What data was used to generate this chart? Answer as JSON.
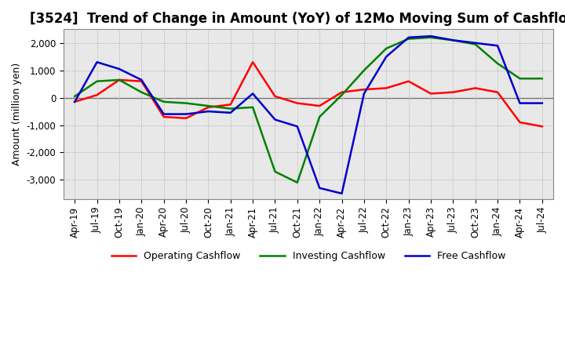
{
  "title": "[3524]  Trend of Change in Amount (YoY) of 12Mo Moving Sum of Cashflows",
  "ylabel": "Amount (million yen)",
  "x_labels": [
    "Apr-19",
    "Jul-19",
    "Oct-19",
    "Jan-20",
    "Apr-20",
    "Jul-20",
    "Oct-20",
    "Jan-21",
    "Apr-21",
    "Jul-21",
    "Oct-21",
    "Jan-22",
    "Apr-22",
    "Jul-22",
    "Oct-22",
    "Jan-23",
    "Apr-23",
    "Jul-23",
    "Oct-23",
    "Jan-24",
    "Apr-24",
    "Jul-24"
  ],
  "operating_cashflow": [
    -150,
    100,
    650,
    600,
    -700,
    -750,
    -350,
    -250,
    1300,
    50,
    -200,
    -300,
    200,
    300,
    350,
    600,
    150,
    200,
    350,
    200,
    -900,
    -1050
  ],
  "investing_cashflow": [
    50,
    600,
    650,
    200,
    -150,
    -200,
    -300,
    -400,
    -350,
    -2700,
    -3100,
    -700,
    100,
    1000,
    1800,
    2150,
    2200,
    2100,
    1950,
    1250,
    700,
    700
  ],
  "free_cashflow": [
    -150,
    1300,
    1050,
    650,
    -600,
    -600,
    -500,
    -550,
    150,
    -800,
    -1050,
    -3300,
    -3500,
    150,
    1500,
    2200,
    2250,
    2100,
    2000,
    1900,
    -200,
    -200
  ],
  "ylim": [
    -3700,
    2500
  ],
  "yticks": [
    -3000,
    -2000,
    -1000,
    0,
    1000,
    2000
  ],
  "legend_labels": [
    "Operating Cashflow",
    "Investing Cashflow",
    "Free Cashflow"
  ],
  "line_colors": [
    "#ff0000",
    "#008000",
    "#0000cc"
  ],
  "bg_color": "#e8e8e8",
  "fig_color": "#ffffff",
  "grid_color": "#aaaaaa",
  "title_fontsize": 12,
  "axis_fontsize": 9,
  "tick_fontsize": 8.5
}
